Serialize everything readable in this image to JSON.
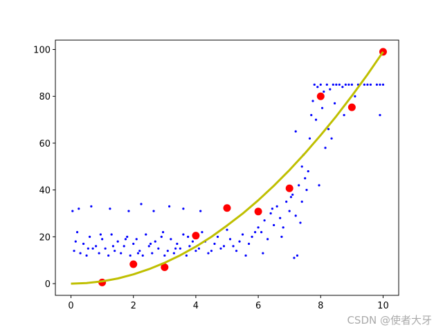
{
  "chart_data": {
    "type": "scatter",
    "xlim": [
      -0.5,
      10.5
    ],
    "ylim": [
      -5,
      104
    ],
    "xticks": [
      0,
      2,
      4,
      6,
      8,
      10
    ],
    "yticks": [
      0,
      20,
      40,
      60,
      80,
      100
    ],
    "grid": false,
    "annotation": "CSDN @使者大牙",
    "series": [
      {
        "mode": "markers",
        "color": "#0000ff",
        "size": 1.6,
        "x": [
          0.1,
          0.2,
          0.3,
          0.4,
          0.5,
          0.6,
          0.7,
          0.8,
          0.9,
          1.0,
          1.1,
          1.2,
          1.3,
          1.4,
          1.5,
          1.6,
          1.7,
          1.8,
          1.9,
          2.0,
          2.1,
          2.2,
          2.3,
          2.4,
          2.5,
          2.6,
          2.7,
          2.8,
          2.9,
          3.0,
          3.1,
          3.2,
          3.3,
          3.4,
          3.5,
          3.6,
          3.7,
          3.8,
          3.9,
          4.0,
          0.15,
          0.55,
          0.95,
          1.35,
          1.75,
          2.15,
          2.55,
          2.95,
          3.35,
          3.75,
          0.05,
          0.25,
          0.65,
          1.25,
          1.85,
          2.25,
          2.65,
          3.15,
          3.6,
          4.15,
          4.1,
          4.3,
          4.5,
          4.7,
          4.9,
          5.1,
          5.3,
          5.5,
          5.7,
          5.9,
          4.2,
          4.4,
          4.6,
          4.8,
          5.0,
          5.2,
          5.4,
          5.6,
          5.8,
          6.0,
          6.1,
          6.2,
          6.3,
          6.4,
          6.5,
          6.6,
          6.7,
          6.8,
          6.9,
          7.0,
          7.1,
          7.2,
          7.3,
          7.4,
          7.5,
          6.15,
          6.45,
          6.75,
          7.05,
          7.35,
          7.15,
          7.25,
          7.45,
          7.55,
          7.65,
          7.7,
          7.75,
          7.6,
          7.4,
          7.2,
          7.8,
          8.0,
          8.2,
          8.4,
          8.6,
          8.8,
          9.0,
          9.2,
          9.4,
          9.6,
          9.8,
          10.0,
          7.9,
          8.1,
          8.3,
          8.5,
          8.7,
          8.9,
          9.5,
          9.9,
          7.85,
          8.05,
          8.15,
          8.45,
          8.75,
          9.1,
          9.9,
          8.25,
          8.35,
          7.95
        ],
        "values": [
          14,
          22,
          13,
          17,
          12,
          20,
          15,
          16,
          13,
          19,
          15,
          12,
          21,
          14,
          18,
          13,
          16,
          20,
          12,
          17,
          19,
          14,
          12,
          21,
          16,
          13,
          18,
          15,
          20,
          12,
          14,
          19,
          13,
          17,
          15,
          21,
          12,
          16,
          18,
          14,
          18,
          15,
          21,
          16,
          19,
          13,
          17,
          22,
          15,
          20,
          31,
          32,
          33,
          32,
          31,
          34,
          31,
          33,
          32,
          31,
          15,
          18,
          14,
          20,
          16,
          19,
          14,
          21,
          17,
          22,
          22,
          13,
          17,
          15,
          23,
          16,
          18,
          12,
          20,
          24,
          22,
          27,
          19,
          30,
          25,
          33,
          28,
          24,
          35,
          31,
          38,
          29,
          42,
          35,
          45,
          13,
          32,
          20,
          37,
          26,
          11,
          12,
          55,
          40,
          62,
          72,
          78,
          48,
          50,
          65,
          85,
          85,
          85,
          85,
          85,
          85,
          85,
          85,
          85,
          85,
          85,
          85,
          84,
          82,
          83,
          85,
          84,
          85,
          85,
          85,
          70,
          75,
          58,
          77,
          72,
          80,
          72,
          66,
          62,
          42
        ]
      },
      {
        "mode": "markers",
        "color": "#ff0000",
        "size": 5.5,
        "x": [
          1,
          2,
          3,
          4,
          5,
          6,
          7,
          8,
          9,
          10
        ],
        "values": [
          0.5,
          8.3,
          7,
          20.5,
          32.3,
          30.8,
          40.7,
          80,
          75.3,
          99
        ]
      },
      {
        "mode": "line",
        "color": "#bfbf00",
        "x": [
          0,
          0.5,
          1,
          1.5,
          2,
          2.5,
          3,
          3.5,
          4,
          4.5,
          5,
          5.5,
          6,
          6.5,
          7,
          7.5,
          8,
          8.5,
          9,
          9.5,
          10
        ],
        "values": [
          0,
          0.25,
          0.99,
          2.2,
          3.96,
          6.2,
          8.9,
          12.1,
          15.8,
          20,
          24.8,
          29.9,
          35.6,
          41.8,
          48.5,
          55.7,
          63.4,
          71.5,
          80.2,
          89.3,
          99
        ]
      }
    ]
  }
}
